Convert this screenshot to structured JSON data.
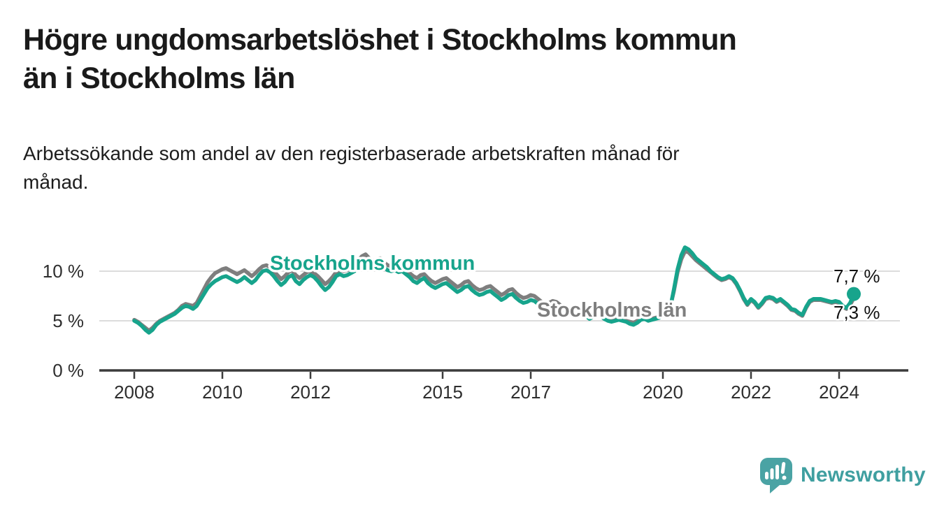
{
  "title_lines": [
    "Högre ungdomsarbetslöshet i Stockholms kommun",
    "än i Stockholms län"
  ],
  "subtitle_lines": [
    "Arbetssökande som andel av den registerbaserade arbetskraften månad för",
    "månad."
  ],
  "branding": {
    "name": "Newsworthy",
    "icon": "speech-bubble-bar-chart-icon",
    "color": "#4aa3a4",
    "text_color": "#3f9fa0"
  },
  "colors": {
    "kommun_line": "#17a48c",
    "lan_line": "#7e7e7e",
    "grid": "#dcdcdc",
    "axis": "#3c3c3c",
    "tick_text": "#2e2e2e",
    "end_label_text": "#111111",
    "background": "#ffffff"
  },
  "chart_data": {
    "type": "line",
    "x_unit": "month",
    "x_start": "2008-01",
    "x_end": "2024-05",
    "ylim": [
      0,
      13
    ],
    "grid": "horizontal",
    "legend_position": "inline-labels-on-lines",
    "yticks": [
      {
        "v": 0,
        "label": "0 %"
      },
      {
        "v": 5,
        "label": "5 %"
      },
      {
        "v": 10,
        "label": "10 %"
      }
    ],
    "xticks": [
      {
        "v": 2008,
        "label": "2008"
      },
      {
        "v": 2010,
        "label": "2010"
      },
      {
        "v": 2012,
        "label": "2012"
      },
      {
        "v": 2015,
        "label": "2015"
      },
      {
        "v": 2017,
        "label": "2017"
      },
      {
        "v": 2020,
        "label": "2020"
      },
      {
        "v": 2022,
        "label": "2022"
      },
      {
        "v": 2024,
        "label": "2024"
      }
    ],
    "series": [
      {
        "name": "Stockholms kommun",
        "color": "#17a48c",
        "end_label": "7,7 %",
        "end_dot": true,
        "values": [
          5.0,
          4.8,
          4.5,
          4.1,
          3.8,
          4.1,
          4.6,
          4.9,
          5.1,
          5.3,
          5.5,
          5.7,
          6.0,
          6.3,
          6.5,
          6.4,
          6.2,
          6.5,
          7.1,
          7.7,
          8.3,
          8.7,
          9.0,
          9.2,
          9.4,
          9.5,
          9.3,
          9.1,
          8.9,
          9.1,
          9.4,
          9.1,
          8.8,
          9.1,
          9.6,
          10.0,
          10.1,
          9.9,
          9.5,
          9.0,
          8.6,
          8.9,
          9.4,
          9.6,
          9.0,
          8.7,
          9.1,
          9.4,
          9.6,
          9.4,
          9.0,
          8.5,
          8.1,
          8.4,
          8.9,
          9.5,
          9.7,
          9.5,
          9.6,
          9.8,
          10.0,
          10.5,
          10.9,
          11.0,
          10.7,
          10.4,
          10.6,
          10.8,
          10.4,
          10.1,
          10.0,
          10.1,
          9.9,
          10.0,
          9.7,
          9.4,
          9.0,
          8.8,
          9.1,
          9.3,
          8.8,
          8.5,
          8.3,
          8.5,
          8.7,
          8.8,
          8.5,
          8.2,
          7.9,
          8.1,
          8.4,
          8.5,
          8.1,
          7.8,
          7.6,
          7.7,
          7.9,
          8.0,
          7.7,
          7.4,
          7.1,
          7.3,
          7.6,
          7.7,
          7.3,
          7.0,
          6.8,
          6.9,
          7.1,
          7.0,
          6.7,
          6.4,
          6.1,
          6.3,
          6.6,
          6.5,
          6.2,
          5.9,
          5.8,
          5.9,
          6.1,
          6.0,
          5.8,
          5.5,
          5.2,
          5.4,
          5.6,
          5.5,
          5.2,
          5.0,
          4.9,
          5.0,
          5.1,
          5.0,
          4.9,
          4.7,
          4.6,
          4.8,
          5.1,
          5.2,
          5.0,
          5.1,
          5.2,
          5.3,
          5.5,
          5.6,
          6.3,
          8.2,
          10.2,
          11.6,
          12.4,
          12.2,
          11.8,
          11.3,
          11.0,
          10.7,
          10.4,
          10.0,
          9.7,
          9.4,
          9.2,
          9.3,
          9.5,
          9.3,
          8.8,
          8.1,
          7.3,
          6.7,
          7.2,
          6.9,
          6.4,
          6.8,
          7.3,
          7.4,
          7.3,
          7.0,
          7.2,
          6.9,
          6.6,
          6.2,
          6.1,
          5.8,
          5.6,
          6.4,
          7.0,
          7.2,
          7.2,
          7.2,
          7.1,
          7.0,
          6.9,
          7.0,
          6.9,
          6.5,
          6.3,
          6.8,
          7.7
        ]
      },
      {
        "name": "Stockholms län",
        "color": "#7e7e7e",
        "end_label": "7,3 %",
        "end_dot": false,
        "values": [
          5.1,
          4.9,
          4.6,
          4.3,
          4.0,
          4.3,
          4.7,
          5.0,
          5.2,
          5.4,
          5.6,
          5.8,
          6.1,
          6.5,
          6.7,
          6.6,
          6.5,
          6.8,
          7.5,
          8.2,
          8.9,
          9.4,
          9.8,
          10.0,
          10.2,
          10.3,
          10.1,
          9.9,
          9.7,
          9.9,
          10.1,
          9.8,
          9.5,
          9.8,
          10.2,
          10.5,
          10.6,
          10.4,
          10.0,
          9.6,
          9.2,
          9.5,
          9.9,
          10.1,
          9.6,
          9.3,
          9.6,
          9.9,
          10.0,
          9.8,
          9.5,
          9.1,
          8.7,
          9.0,
          9.4,
          9.9,
          10.1,
          10.0,
          10.1,
          10.3,
          10.6,
          11.1,
          11.5,
          11.7,
          11.3,
          11.0,
          11.2,
          11.3,
          10.9,
          10.6,
          10.5,
          10.6,
          10.4,
          10.5,
          10.2,
          9.8,
          9.5,
          9.3,
          9.6,
          9.7,
          9.3,
          9.0,
          8.8,
          9.0,
          9.2,
          9.3,
          9.0,
          8.7,
          8.4,
          8.6,
          8.9,
          9.0,
          8.6,
          8.3,
          8.1,
          8.2,
          8.4,
          8.5,
          8.2,
          7.9,
          7.6,
          7.8,
          8.1,
          8.2,
          7.8,
          7.5,
          7.3,
          7.4,
          7.6,
          7.5,
          7.2,
          6.9,
          6.6,
          6.8,
          7.0,
          6.9,
          6.6,
          6.3,
          6.2,
          6.3,
          6.4,
          6.3,
          6.1,
          5.8,
          5.5,
          5.6,
          5.8,
          5.7,
          5.4,
          5.2,
          5.1,
          5.2,
          5.3,
          5.2,
          5.0,
          4.9,
          4.8,
          5.0,
          5.2,
          5.3,
          5.1,
          5.2,
          5.3,
          5.4,
          5.6,
          5.7,
          6.4,
          8.0,
          9.9,
          11.2,
          12.0,
          11.9,
          11.5,
          11.1,
          10.8,
          10.5,
          10.2,
          9.9,
          9.6,
          9.3,
          9.1,
          9.2,
          9.4,
          9.2,
          8.7,
          8.0,
          7.2,
          6.6,
          7.1,
          6.8,
          6.3,
          6.7,
          7.2,
          7.3,
          7.2,
          6.9,
          7.1,
          6.8,
          6.5,
          6.1,
          6.0,
          5.7,
          5.5,
          6.3,
          6.9,
          7.1,
          7.1,
          7.1,
          7.0,
          6.9,
          6.8,
          6.9,
          6.8,
          6.4,
          6.2,
          6.6,
          7.3
        ]
      }
    ]
  }
}
